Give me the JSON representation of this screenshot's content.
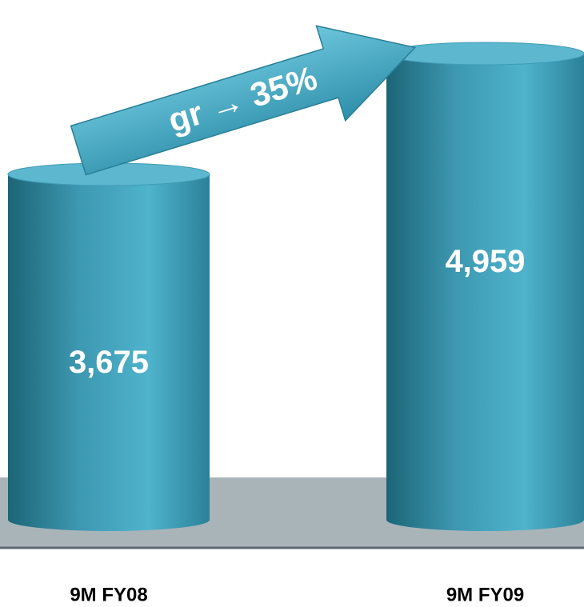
{
  "chart_data": {
    "type": "bar",
    "categories": [
      "9M FY08",
      "9M FY09"
    ],
    "values": [
      3675,
      4959
    ],
    "value_labels": [
      "3,675",
      "4,959"
    ],
    "color": "#3a9ab5",
    "annotation": "gr → 35%"
  }
}
